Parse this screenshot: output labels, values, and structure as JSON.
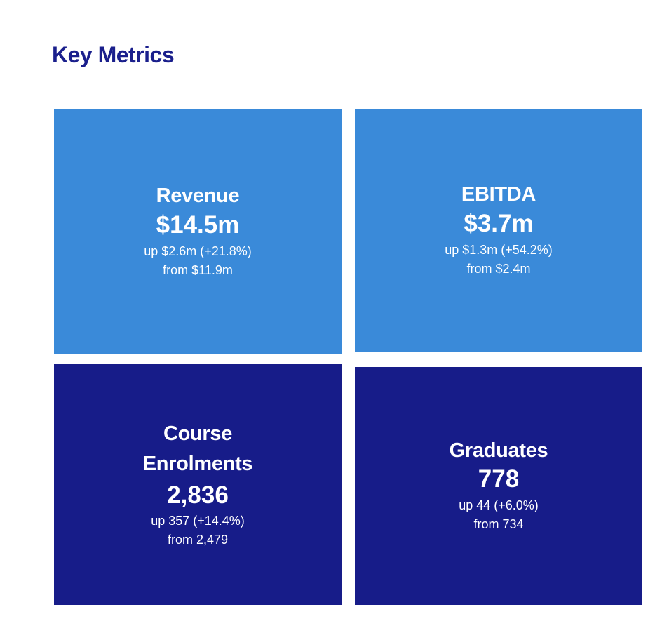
{
  "page": {
    "title": "Key Metrics"
  },
  "colors": {
    "title": "#1a1f8c",
    "tile_light": "#3a8ad9",
    "tile_dark": "#171c89",
    "tile_text": "#ffffff"
  },
  "metrics": [
    {
      "label": "Revenue",
      "value": "$14.5m",
      "change": "up $2.6m (+21.8%)",
      "previous": "from $11.9m",
      "style": "light"
    },
    {
      "label": "EBITDA",
      "value": "$3.7m",
      "change": "up $1.3m (+54.2%)",
      "previous": "from $2.4m",
      "style": "light"
    },
    {
      "label_lines": [
        "Course",
        "Enrolments"
      ],
      "value": "2,836",
      "change": "up 357 (+14.4%)",
      "previous": "from 2,479",
      "style": "dark"
    },
    {
      "label": "Graduates",
      "value": "778",
      "change": "up 44 (+6.0%)",
      "previous": "from 734",
      "style": "dark"
    }
  ]
}
